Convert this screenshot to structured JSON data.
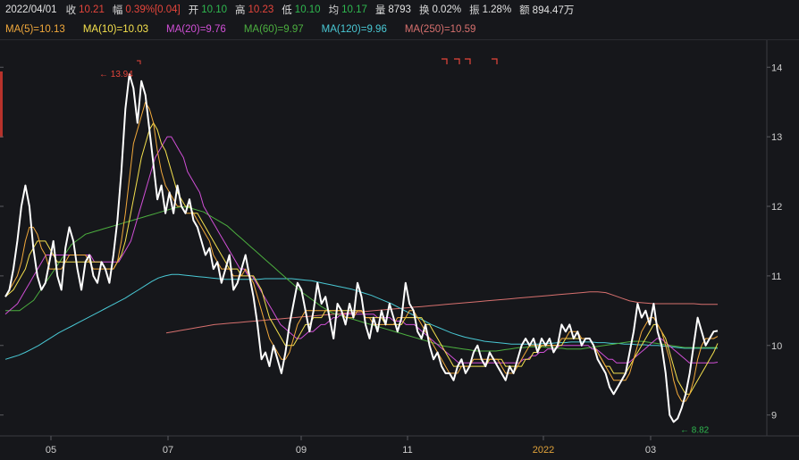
{
  "info": {
    "date": "2022/04/01",
    "close_label": "收",
    "close": "10.21",
    "change_label": "幅",
    "change": "0.39%[0.04]",
    "open_label": "开",
    "open": "10.10",
    "high_label": "高",
    "high": "10.23",
    "low_label": "低",
    "low": "10.10",
    "avg_label": "均",
    "avg": "10.17",
    "volume_label": "量",
    "volume": "8793",
    "turnover_label": "换",
    "turnover": "0.02%",
    "amplitude_label": "振",
    "amplitude": "1.28%",
    "amount_label": "额",
    "amount": "894.47万"
  },
  "ma_legend": [
    {
      "text": "MA(5)=10.13",
      "color": "#f2a93b"
    },
    {
      "text": "MA(10)=10.03",
      "color": "#f4e04d"
    },
    {
      "text": "MA(20)=9.76",
      "color": "#d04fd6"
    },
    {
      "text": "MA(60)=9.97",
      "color": "#4caf3f"
    },
    {
      "text": "MA(120)=9.96",
      "color": "#49c8d4"
    },
    {
      "text": "MA(250)=10.59",
      "color": "#d7706e"
    }
  ],
  "chart_data": {
    "type": "line",
    "ylim": [
      8.7,
      14.35
    ],
    "yticks": [
      "14",
      "13",
      "12",
      "11",
      "10",
      "9"
    ],
    "xticks": [
      "05",
      "07",
      "09",
      "11",
      "2022",
      "03"
    ],
    "annotations": {
      "max_label": "13.94",
      "min_label": "8.82",
      "max_value": 13.94,
      "min_value": 8.82
    },
    "series": [
      {
        "key": "price",
        "color": "#ffffff",
        "values": [
          10.7,
          10.8,
          11.1,
          11.5,
          12.0,
          12.3,
          12.0,
          11.4,
          11.0,
          10.8,
          10.9,
          11.2,
          11.5,
          11.0,
          10.8,
          11.4,
          11.7,
          11.5,
          11.1,
          10.8,
          11.2,
          11.3,
          11.0,
          10.9,
          11.2,
          11.1,
          10.9,
          11.3,
          11.8,
          12.5,
          13.4,
          13.9,
          13.7,
          13.2,
          13.8,
          13.6,
          13.1,
          12.6,
          12.1,
          12.3,
          11.9,
          12.2,
          11.9,
          12.3,
          12.0,
          11.9,
          12.1,
          11.8,
          11.7,
          11.5,
          11.3,
          11.4,
          11.1,
          11.2,
          10.9,
          11.1,
          11.3,
          10.8,
          10.9,
          11.1,
          11.3,
          11.0,
          10.7,
          10.3,
          9.8,
          9.9,
          9.7,
          10.0,
          9.8,
          9.6,
          9.9,
          10.3,
          10.6,
          10.9,
          10.8,
          10.5,
          10.2,
          10.5,
          10.9,
          10.6,
          10.7,
          10.4,
          10.1,
          10.6,
          10.5,
          10.3,
          10.6,
          10.4,
          10.9,
          10.7,
          10.3,
          10.1,
          10.4,
          10.2,
          10.5,
          10.3,
          10.6,
          10.4,
          10.2,
          10.4,
          10.9,
          10.6,
          10.5,
          10.2,
          10.1,
          10.3,
          10.0,
          9.8,
          9.9,
          9.7,
          9.6,
          9.6,
          9.5,
          9.7,
          9.8,
          9.6,
          9.7,
          9.9,
          10.0,
          9.8,
          9.7,
          9.9,
          9.8,
          9.7,
          9.6,
          9.5,
          9.7,
          9.6,
          9.8,
          10.0,
          10.1,
          10.0,
          10.1,
          9.9,
          10.1,
          10.0,
          10.1,
          9.9,
          10.0,
          10.3,
          10.2,
          10.3,
          10.1,
          10.2,
          10.0,
          10.1,
          10.1,
          10.0,
          9.8,
          9.7,
          9.6,
          9.4,
          9.3,
          9.4,
          9.5,
          9.6,
          9.9,
          10.2,
          10.6,
          10.4,
          10.5,
          10.3,
          10.6,
          10.2,
          10.0,
          9.6,
          9.0,
          8.9,
          8.95,
          9.1,
          9.3,
          9.6,
          10.0,
          10.4,
          10.2,
          10.0,
          10.1,
          10.2,
          10.21
        ]
      },
      {
        "key": "ma5",
        "color": "#f2a93b",
        "values": [
          10.7,
          10.8,
          10.9,
          11.0,
          11.2,
          11.5,
          11.7,
          11.7,
          11.6,
          11.4,
          11.3,
          11.1,
          11.1,
          11.1,
          11.1,
          11.2,
          11.3,
          11.3,
          11.3,
          11.3,
          11.3,
          11.2,
          11.1,
          11.1,
          11.1,
          11.1,
          11.1,
          11.1,
          11.2,
          11.5,
          11.9,
          12.4,
          12.9,
          13.1,
          13.3,
          13.5,
          13.4,
          13.2,
          12.8,
          12.5,
          12.3,
          12.2,
          12.1,
          12.0,
          12.0,
          11.9,
          11.9,
          11.9,
          11.8,
          11.7,
          11.6,
          11.5,
          11.3,
          11.2,
          11.1,
          11.1,
          11.1,
          11.0,
          11.0,
          11.0,
          11.1,
          11.0,
          10.9,
          10.7,
          10.5,
          10.3,
          10.1,
          10.0,
          9.9,
          9.8,
          9.8,
          9.9,
          10.1,
          10.3,
          10.4,
          10.5,
          10.5,
          10.5,
          10.5,
          10.5,
          10.5,
          10.5,
          10.5,
          10.5,
          10.5,
          10.4,
          10.4,
          10.4,
          10.5,
          10.5,
          10.4,
          10.4,
          10.3,
          10.3,
          10.3,
          10.3,
          10.3,
          10.3,
          10.4,
          10.4,
          10.4,
          10.5,
          10.5,
          10.4,
          10.3,
          10.2,
          10.1,
          10.0,
          9.9,
          9.8,
          9.7,
          9.6,
          9.6,
          9.6,
          9.7,
          9.7,
          9.7,
          9.8,
          9.8,
          9.8,
          9.8,
          9.8,
          9.8,
          9.8,
          9.7,
          9.6,
          9.6,
          9.6,
          9.7,
          9.8,
          9.9,
          10.0,
          10.0,
          10.0,
          10.0,
          10.0,
          10.0,
          10.0,
          10.0,
          10.1,
          10.1,
          10.2,
          10.2,
          10.2,
          10.1,
          10.1,
          10.1,
          10.0,
          9.9,
          9.8,
          9.7,
          9.6,
          9.5,
          9.5,
          9.5,
          9.5,
          9.6,
          9.8,
          10.0,
          10.2,
          10.3,
          10.4,
          10.4,
          10.3,
          10.2,
          10.0,
          9.8,
          9.5,
          9.3,
          9.2,
          9.2,
          9.3,
          9.5,
          9.8,
          10.0,
          10.1,
          10.1,
          10.1,
          10.13
        ]
      },
      {
        "key": "ma10",
        "color": "#f4e04d",
        "values": [
          10.7,
          10.75,
          10.8,
          10.9,
          11.0,
          11.1,
          11.3,
          11.4,
          11.5,
          11.5,
          11.5,
          11.4,
          11.3,
          11.2,
          11.2,
          11.2,
          11.2,
          11.2,
          11.2,
          11.2,
          11.2,
          11.2,
          11.2,
          11.2,
          11.2,
          11.1,
          11.1,
          11.1,
          11.2,
          11.3,
          11.5,
          11.8,
          12.1,
          12.4,
          12.7,
          12.9,
          13.1,
          13.2,
          13.1,
          12.9,
          12.8,
          12.6,
          12.4,
          12.2,
          12.1,
          12.0,
          12.0,
          11.9,
          11.9,
          11.8,
          11.7,
          11.6,
          11.5,
          11.4,
          11.3,
          11.2,
          11.1,
          11.1,
          11.1,
          11.0,
          11.0,
          11.0,
          11.0,
          10.9,
          10.8,
          10.6,
          10.4,
          10.3,
          10.2,
          10.1,
          10.0,
          10.0,
          10.0,
          10.1,
          10.2,
          10.3,
          10.3,
          10.4,
          10.4,
          10.4,
          10.5,
          10.5,
          10.5,
          10.5,
          10.5,
          10.5,
          10.5,
          10.5,
          10.5,
          10.5,
          10.4,
          10.4,
          10.4,
          10.4,
          10.4,
          10.3,
          10.3,
          10.3,
          10.3,
          10.3,
          10.4,
          10.4,
          10.4,
          10.4,
          10.4,
          10.3,
          10.3,
          10.2,
          10.1,
          10.0,
          9.9,
          9.8,
          9.7,
          9.7,
          9.7,
          9.7,
          9.7,
          9.7,
          9.7,
          9.7,
          9.7,
          9.8,
          9.8,
          9.8,
          9.8,
          9.7,
          9.7,
          9.7,
          9.7,
          9.7,
          9.8,
          9.8,
          9.9,
          9.9,
          10.0,
          10.0,
          10.0,
          10.0,
          10.0,
          10.0,
          10.1,
          10.1,
          10.1,
          10.1,
          10.1,
          10.1,
          10.1,
          10.0,
          9.9,
          9.8,
          9.7,
          9.7,
          9.6,
          9.6,
          9.6,
          9.6,
          9.7,
          9.8,
          9.9,
          10.0,
          10.1,
          10.2,
          10.3,
          10.3,
          10.2,
          10.1,
          9.9,
          9.7,
          9.5,
          9.4,
          9.3,
          9.3,
          9.4,
          9.5,
          9.6,
          9.7,
          9.8,
          9.9,
          10.03
        ]
      },
      {
        "key": "ma20",
        "color": "#d04fd6",
        "values": [
          10.45,
          10.5,
          10.55,
          10.6,
          10.7,
          10.8,
          10.9,
          11.0,
          11.1,
          11.2,
          11.3,
          11.3,
          11.3,
          11.3,
          11.3,
          11.3,
          11.3,
          11.3,
          11.3,
          11.3,
          11.3,
          11.3,
          11.2,
          11.2,
          11.2,
          11.2,
          11.2,
          11.2,
          11.2,
          11.3,
          11.4,
          11.5,
          11.7,
          11.9,
          12.1,
          12.3,
          12.5,
          12.7,
          12.8,
          12.9,
          13.0,
          13.0,
          12.9,
          12.8,
          12.7,
          12.5,
          12.4,
          12.3,
          12.2,
          12.0,
          11.9,
          11.8,
          11.7,
          11.6,
          11.5,
          11.4,
          11.3,
          11.2,
          11.1,
          11.1,
          11.0,
          11.0,
          10.9,
          10.8,
          10.7,
          10.6,
          10.5,
          10.4,
          10.3,
          10.25,
          10.2,
          10.15,
          10.1,
          10.1,
          10.15,
          10.2,
          10.2,
          10.25,
          10.3,
          10.3,
          10.35,
          10.4,
          10.4,
          10.45,
          10.45,
          10.45,
          10.45,
          10.45,
          10.45,
          10.45,
          10.45,
          10.45,
          10.4,
          10.4,
          10.4,
          10.4,
          10.35,
          10.35,
          10.35,
          10.3,
          10.3,
          10.3,
          10.25,
          10.2,
          10.15,
          10.1,
          10.05,
          10.0,
          9.95,
          9.9,
          9.85,
          9.8,
          9.75,
          9.75,
          9.75,
          9.75,
          9.75,
          9.75,
          9.75,
          9.75,
          9.75,
          9.75,
          9.75,
          9.75,
          9.75,
          9.75,
          9.75,
          9.75,
          9.8,
          9.8,
          9.85,
          9.85,
          9.9,
          9.9,
          9.95,
          9.95,
          9.95,
          10.0,
          10.0,
          10.0,
          10.0,
          10.0,
          10.0,
          10.0,
          10.0,
          9.95,
          9.95,
          9.9,
          9.85,
          9.8,
          9.8,
          9.75,
          9.75,
          9.75,
          9.75,
          9.8,
          9.85,
          9.9,
          9.95,
          10.0,
          10.05,
          10.1,
          10.1,
          10.05,
          10.0,
          9.95,
          9.9,
          9.85,
          9.8,
          9.75,
          9.75,
          9.75,
          9.75,
          9.75,
          9.75,
          9.75,
          9.76
        ]
      },
      {
        "key": "ma60",
        "color": "#4caf3f",
        "values": [
          10.5,
          10.5,
          10.5,
          10.5,
          10.55,
          10.6,
          10.65,
          10.75,
          10.85,
          10.95,
          11.05,
          11.15,
          11.25,
          11.35,
          11.45,
          11.5,
          11.55,
          11.6,
          11.62,
          11.64,
          11.66,
          11.68,
          11.7,
          11.72,
          11.74,
          11.76,
          11.78,
          11.8,
          11.82,
          11.84,
          11.86,
          11.88,
          11.9,
          11.92,
          11.94,
          11.96,
          11.98,
          11.99,
          11.99,
          11.98,
          11.96,
          11.94,
          11.92,
          11.88,
          11.84,
          11.8,
          11.76,
          11.72,
          11.66,
          11.6,
          11.54,
          11.48,
          11.42,
          11.36,
          11.3,
          11.24,
          11.18,
          11.12,
          11.06,
          11.0,
          10.94,
          10.88,
          10.82,
          10.76,
          10.71,
          10.66,
          10.61,
          10.56,
          10.52,
          10.48,
          10.45,
          10.43,
          10.41,
          10.39,
          10.37,
          10.35,
          10.33,
          10.31,
          10.29,
          10.27,
          10.25,
          10.23,
          10.21,
          10.19,
          10.17,
          10.15,
          10.13,
          10.11,
          10.09,
          10.07,
          10.05,
          10.03,
          10.01,
          9.99,
          9.98,
          9.97,
          9.96,
          9.95,
          9.94,
          9.93,
          9.92,
          9.92,
          9.92,
          9.92,
          9.92,
          9.93,
          9.94,
          9.95,
          9.96,
          9.97,
          9.97,
          9.98,
          9.98,
          9.98,
          9.98,
          9.97,
          9.97,
          9.96,
          9.96,
          9.95,
          9.95,
          9.95,
          9.95,
          9.96,
          9.97,
          9.98,
          9.99,
          10.0,
          10.01,
          10.02,
          10.03,
          10.04,
          10.05,
          10.06,
          10.06,
          10.06,
          10.05,
          10.04,
          10.03,
          10.02,
          10.01,
          10.0,
          9.99,
          9.98,
          9.97,
          9.97,
          9.97,
          9.97,
          9.97,
          9.97,
          9.97,
          9.97
        ]
      },
      {
        "key": "ma120",
        "color": "#49c8d4",
        "values": [
          9.8,
          9.83,
          9.86,
          9.9,
          9.95,
          10.0,
          10.06,
          10.12,
          10.18,
          10.23,
          10.28,
          10.33,
          10.38,
          10.43,
          10.48,
          10.53,
          10.58,
          10.63,
          10.68,
          10.74,
          10.8,
          10.86,
          10.92,
          10.97,
          11.0,
          11.02,
          11.02,
          11.01,
          11.0,
          10.99,
          10.98,
          10.97,
          10.96,
          10.95,
          10.95,
          10.95,
          10.95,
          10.95,
          10.95,
          10.96,
          10.96,
          10.96,
          10.96,
          10.96,
          10.95,
          10.94,
          10.93,
          10.91,
          10.89,
          10.87,
          10.85,
          10.83,
          10.81,
          10.78,
          10.75,
          10.72,
          10.68,
          10.64,
          10.6,
          10.55,
          10.5,
          10.45,
          10.4,
          10.35,
          10.3,
          10.26,
          10.22,
          10.18,
          10.15,
          10.12,
          10.1,
          10.08,
          10.06,
          10.05,
          10.04,
          10.03,
          10.02,
          10.02,
          10.02,
          10.02,
          10.02,
          10.03,
          10.03,
          10.04,
          10.04,
          10.05,
          10.05,
          10.05,
          10.05,
          10.04,
          10.04,
          10.03,
          10.03,
          10.02,
          10.02,
          10.01,
          10.01,
          10.0,
          10.0,
          9.99,
          9.98,
          9.97,
          9.96,
          9.96,
          9.96,
          9.96,
          9.96,
          9.96
        ]
      },
      {
        "key": "ma250",
        "color": "#d7706e",
        "values": [
          10.18,
          10.2,
          10.22,
          10.24,
          10.26,
          10.28,
          10.3,
          10.31,
          10.32,
          10.33,
          10.34,
          10.35,
          10.36,
          10.37,
          10.38,
          10.39,
          10.4,
          10.41,
          10.42,
          10.43,
          10.44,
          10.45,
          10.46,
          10.47,
          10.48,
          10.49,
          10.5,
          10.51,
          10.52,
          10.53,
          10.54,
          10.55,
          10.56,
          10.57,
          10.58,
          10.59,
          10.6,
          10.61,
          10.62,
          10.63,
          10.64,
          10.65,
          10.66,
          10.67,
          10.68,
          10.69,
          10.7,
          10.71,
          10.72,
          10.73,
          10.74,
          10.75,
          10.76,
          10.77,
          10.77,
          10.76,
          10.72,
          10.68,
          10.64,
          10.62,
          10.61,
          10.6,
          10.6,
          10.6,
          10.6,
          10.6,
          10.6,
          10.59,
          10.59,
          10.59
        ]
      }
    ]
  }
}
